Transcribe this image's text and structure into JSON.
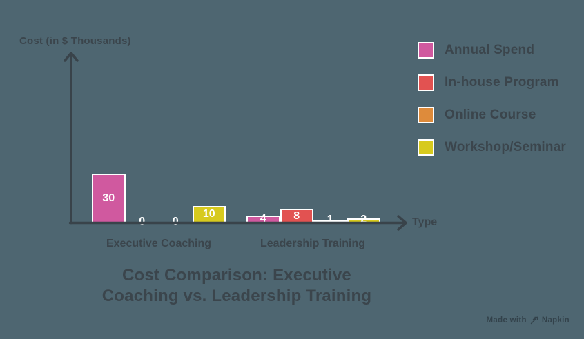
{
  "theme": {
    "background": "#4e6671",
    "axis_color": "#39434a",
    "text_color": "#3b454c",
    "bar_border_color": "#ffffff",
    "bar_value_color": "#ffffff"
  },
  "chart_data": {
    "type": "bar",
    "title": "Cost Comparison: Executive Coaching vs. Leadership Training",
    "title_lines": [
      "Cost Comparison: Executive",
      "Coaching vs. Leadership Training"
    ],
    "xlabel": "Type",
    "ylabel": "Cost (in $ Thousands)",
    "categories": [
      "Executive Coaching",
      "Leadership Training"
    ],
    "series": [
      {
        "name": "Annual Spend",
        "color": "#d0599f",
        "values": [
          30,
          4
        ]
      },
      {
        "name": "In-house Program",
        "color": "#e25251",
        "values": [
          0,
          8
        ]
      },
      {
        "name": "Online Course",
        "color": "#de8b3b",
        "values": [
          0,
          1
        ]
      },
      {
        "name": "Workshop/Seminar",
        "color": "#d7ca1e",
        "values": [
          10,
          2
        ]
      }
    ],
    "value_labels": [
      [
        "30",
        "0",
        "0",
        "10"
      ],
      [
        "4",
        "8",
        "1",
        "2"
      ]
    ],
    "legend_position": "top-right",
    "grid": false,
    "axis_arrows": true
  },
  "watermark": {
    "prefix": "Made with",
    "brand": "Napkin"
  }
}
